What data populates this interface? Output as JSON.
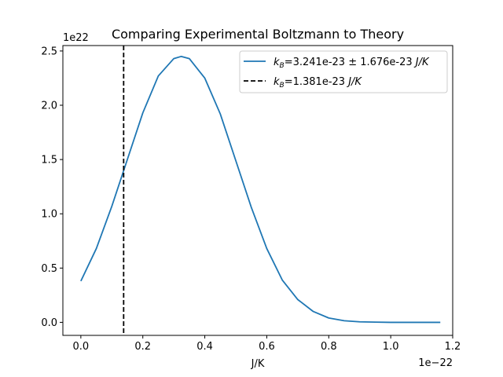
{
  "chart_data": {
    "type": "line",
    "title": "Comparing Experimental Boltzmann to Theory",
    "xlabel": "J/K",
    "ylabel": "",
    "x_offset_label": "1e−22",
    "y_offset_label": "1e22",
    "xlim": [
      -0.058,
      1.2
    ],
    "ylim": [
      -0.12,
      2.55
    ],
    "x_ticks": [
      0.0,
      0.2,
      0.4,
      0.6,
      0.8,
      1.0,
      1.2
    ],
    "x_tick_labels": [
      "0.0",
      "0.2",
      "0.4",
      "0.6",
      "0.8",
      "1.0",
      "1.2"
    ],
    "y_ticks": [
      0.0,
      0.5,
      1.0,
      1.5,
      2.0,
      2.5
    ],
    "y_tick_labels": [
      "0.0",
      "0.5",
      "1.0",
      "1.5",
      "2.0",
      "2.5"
    ],
    "grid": false,
    "legend_position": "top-right",
    "series": [
      {
        "kind": "line",
        "name": "k_B=3.241e-23 ± 1.676e-23 J/K",
        "legend_main": "k",
        "legend_sub": "B",
        "legend_rest": "=3.241e-23 ± 1.676e-23 ",
        "legend_unit": "J/K",
        "color": "#1f77b4",
        "style": "solid",
        "x": [
          0.0,
          0.05,
          0.1,
          0.15,
          0.2,
          0.25,
          0.3,
          0.3241,
          0.35,
          0.4,
          0.45,
          0.5,
          0.55,
          0.6,
          0.65,
          0.7,
          0.75,
          0.8,
          0.85,
          0.9,
          0.95,
          1.0,
          1.05,
          1.1,
          1.16
        ],
        "y": [
          0.38,
          0.68,
          1.07,
          1.5,
          1.93,
          2.27,
          2.43,
          2.45,
          2.43,
          2.25,
          1.92,
          1.49,
          1.06,
          0.68,
          0.39,
          0.21,
          0.1,
          0.04,
          0.015,
          0.005,
          0.002,
          0.0,
          0.0,
          0.0,
          0.0
        ]
      },
      {
        "kind": "vline",
        "name": "k_B=1.381e-23 J/K",
        "legend_main": "k",
        "legend_sub": "B",
        "legend_rest": "=1.381e-23 ",
        "legend_unit": "J/K",
        "color": "#000000",
        "style": "dashed",
        "x_value": 0.1381
      }
    ]
  }
}
